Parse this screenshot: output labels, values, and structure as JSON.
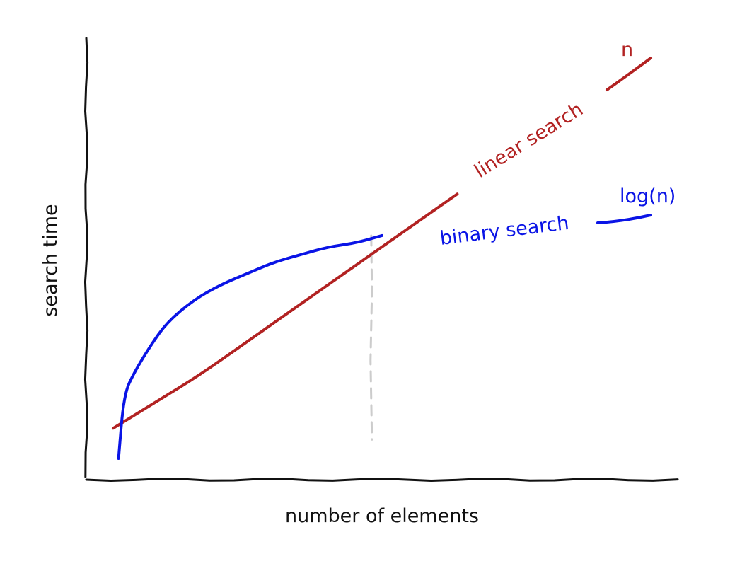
{
  "chart_data": {
    "type": "line",
    "title": "",
    "xlabel": "number of elements",
    "ylabel": "search time",
    "grid": false,
    "x_ticks": false,
    "y_ticks": false,
    "series": [
      {
        "label": "linear search",
        "complexity": "n",
        "color": "#b22222",
        "x": [
          0.0,
          0.08,
          0.16,
          0.24,
          0.32,
          0.4,
          0.48,
          0.56,
          0.64,
          0.72,
          0.8,
          0.88,
          0.96,
          1.0
        ],
        "y": [
          0.08,
          0.15,
          0.22,
          0.3,
          0.38,
          0.46,
          0.54,
          0.62,
          0.7,
          0.78,
          0.86,
          0.94,
          1.02,
          1.06
        ]
      },
      {
        "label": "binary search",
        "complexity": "log(n)",
        "color": "#0a14e6",
        "x": [
          0.01,
          0.02,
          0.04,
          0.07,
          0.1,
          0.15,
          0.2,
          0.25,
          0.3,
          0.35,
          0.4,
          0.45,
          0.5,
          0.6,
          0.7,
          0.8,
          0.9,
          1.0
        ],
        "y": [
          0.0,
          0.17,
          0.23,
          0.3,
          0.36,
          0.42,
          0.46,
          0.49,
          0.52,
          0.54,
          0.56,
          0.57,
          0.59,
          0.62,
          0.64,
          0.66,
          0.67,
          0.68
        ]
      }
    ],
    "crossover_marker": {
      "style": "dashed",
      "color": "#cccccc",
      "x": 0.48
    }
  }
}
